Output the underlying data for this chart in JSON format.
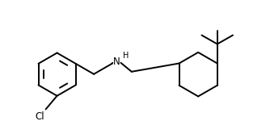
{
  "background_color": "#ffffff",
  "line_color": "#000000",
  "line_width": 1.4,
  "figsize": [
    3.34,
    1.71
  ],
  "dpi": 100,
  "xlim": [
    0,
    10
  ],
  "ylim": [
    0,
    5.1
  ]
}
